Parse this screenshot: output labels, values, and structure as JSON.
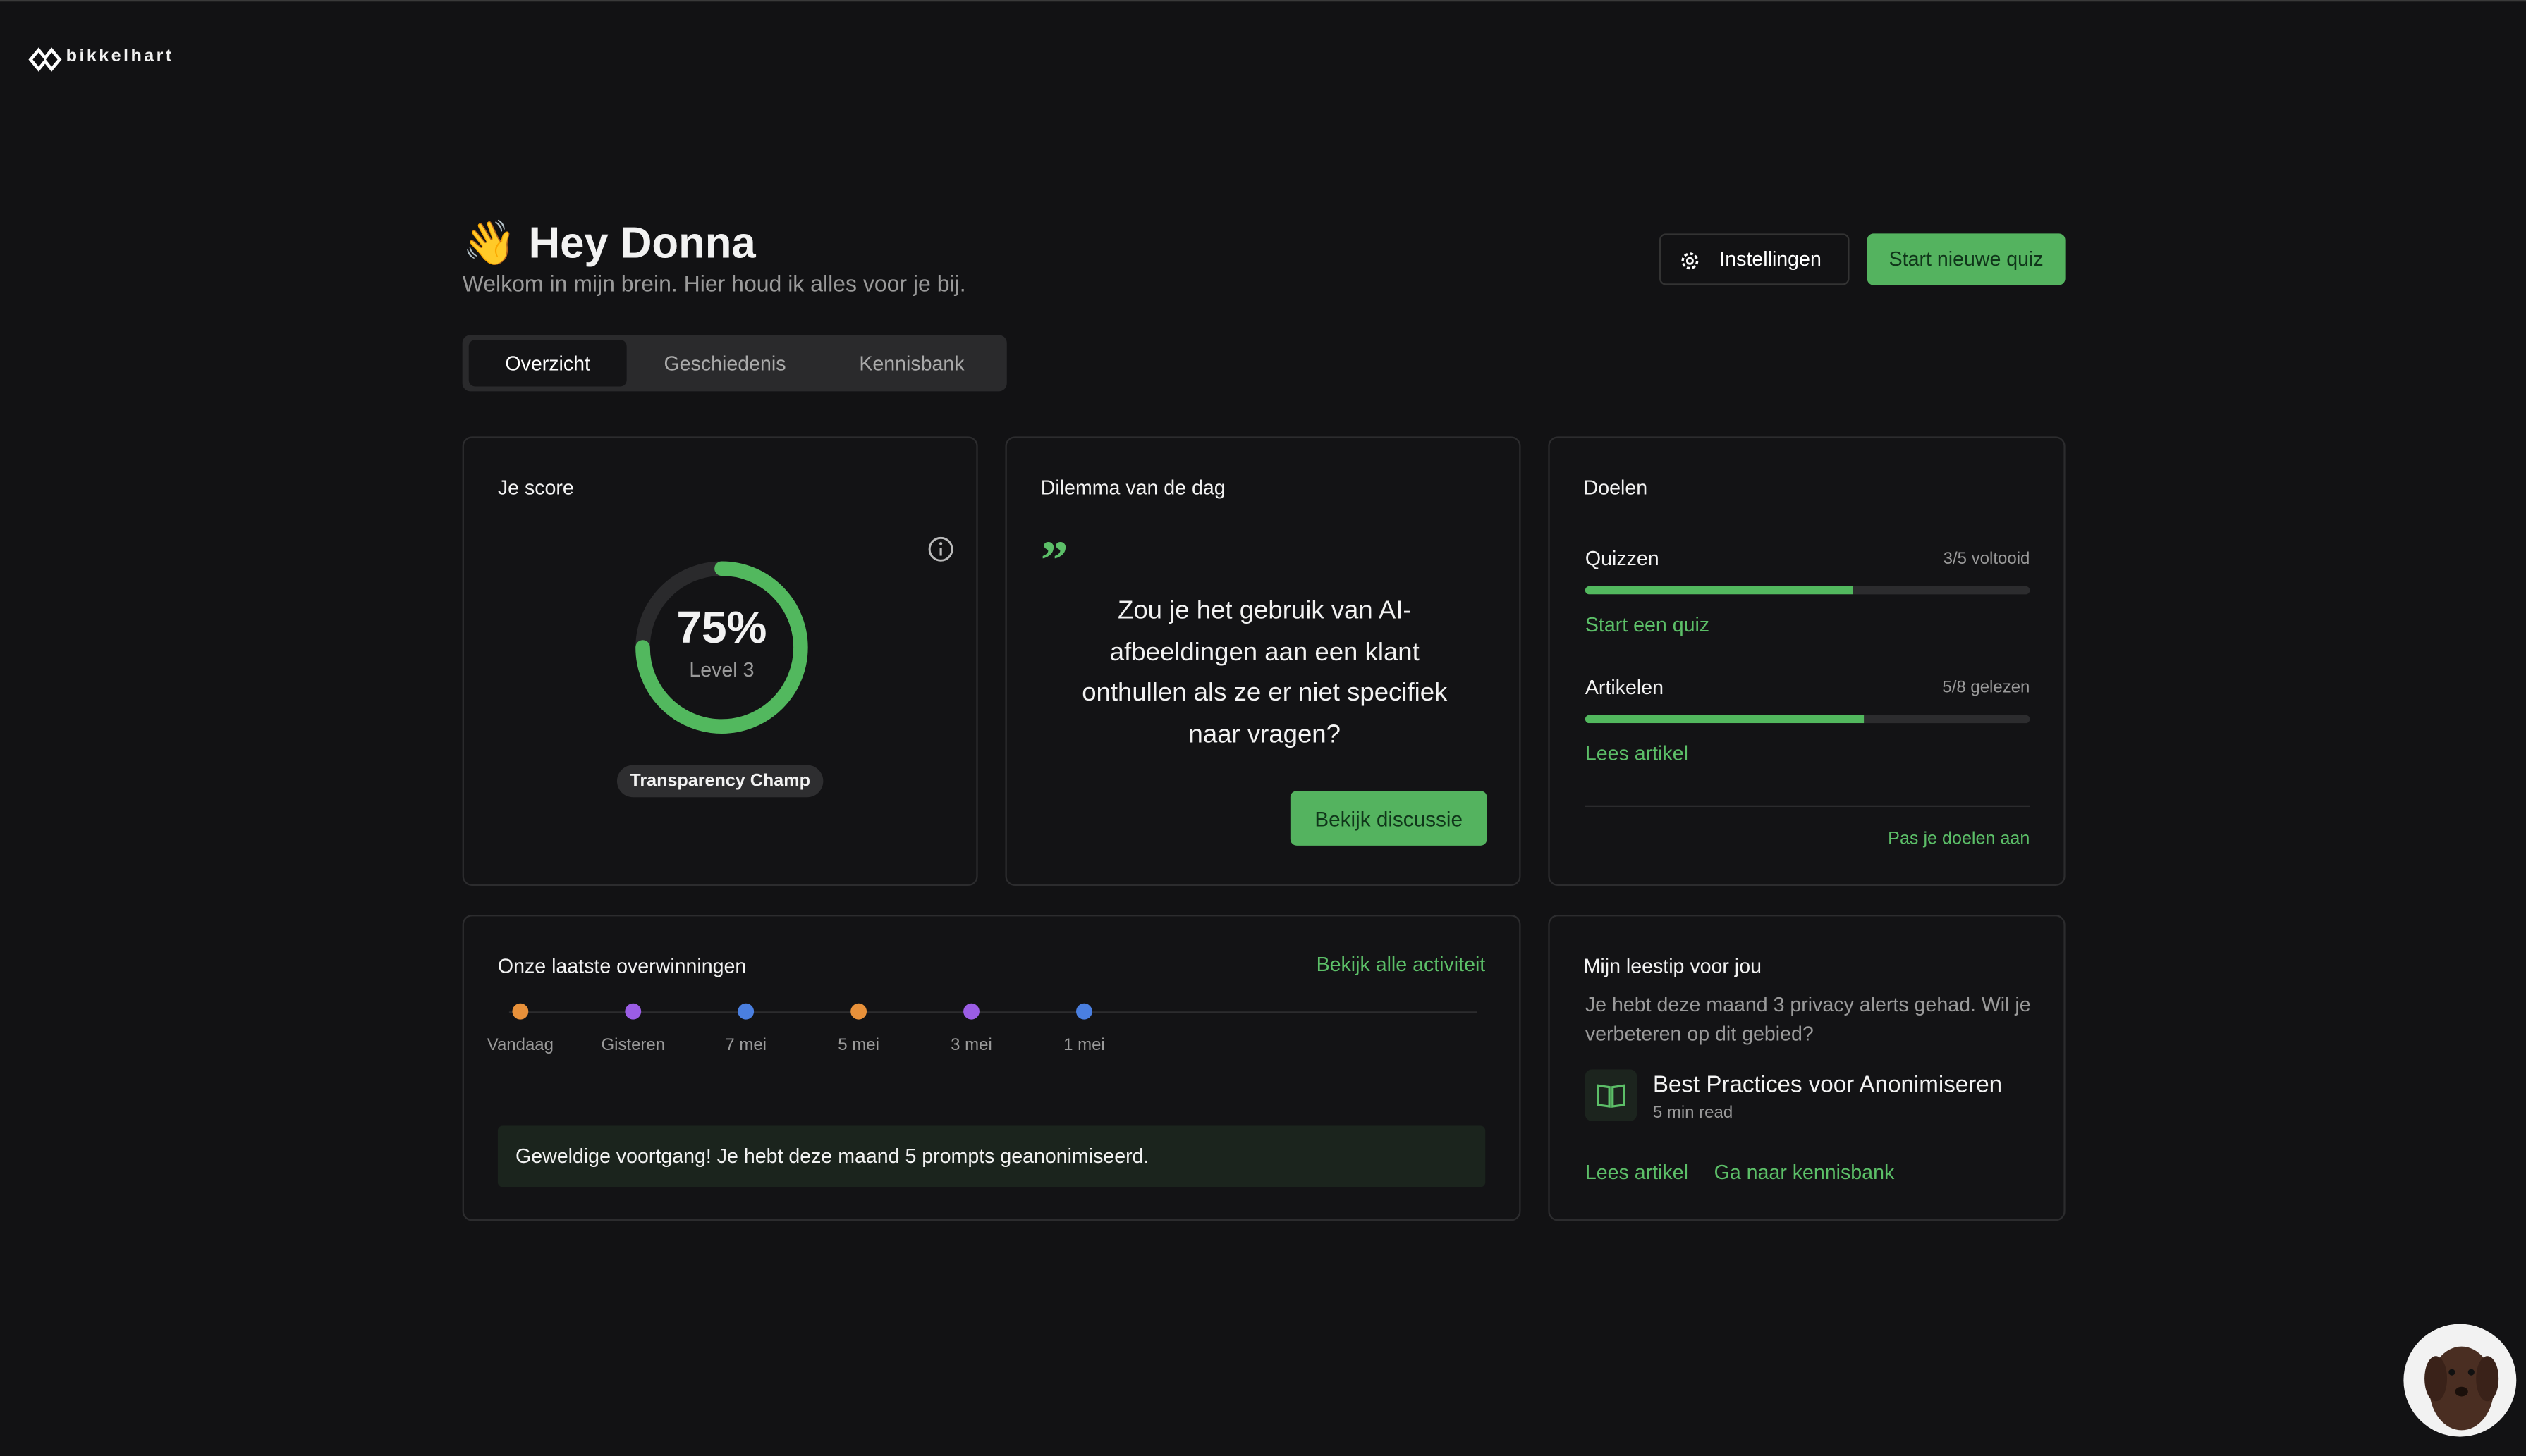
{
  "logo": {
    "name": "bikkelhart"
  },
  "header": {
    "title": "👋 Hey Donna",
    "subtitle": "Welkom in mijn brein. Hier houd ik alles voor je bij.",
    "buttons": [
      "Instellingen",
      "Start nieuwe quiz"
    ]
  },
  "tabs": [
    "Overzicht",
    "Geschiedenis",
    "Kennisbank"
  ],
  "score_card": {
    "title": "Je score",
    "score": {
      "value": 75,
      "label": "75%"
    },
    "level": "Level 3",
    "badge": "Transparency Champ"
  },
  "dilemma_card": {
    "title": "Dilemma van de dag",
    "question": "Zou je het gebruik van AI-afbeeldingen aan een klant onthullen als ze er niet specifiek naar vragen?",
    "button": "Bekijk discussie"
  },
  "goals_card": {
    "title": "Doelen",
    "goals": [
      {
        "name": "Quizzen",
        "done": 3,
        "total": 5,
        "label": "3/5 voltooid",
        "link": "Start een quiz"
      },
      {
        "name": "Artikelen",
        "done": 5,
        "total": 8,
        "label": "5/8 gelezen",
        "link": "Lees artikel"
      }
    ],
    "footer_link": "Pas je doelen aan"
  },
  "wins_card": {
    "title": "Onze laatste overwinningen",
    "link": "Bekijk alle activiteit",
    "timeline": [
      {
        "label": "Vandaag",
        "color": "#e8913a"
      },
      {
        "label": "Gisteren",
        "color": "#9b5de5"
      },
      {
        "label": "7 mei",
        "color": "#4a7fe0"
      },
      {
        "label": "5 mei",
        "color": "#e8913a"
      },
      {
        "label": "3 mei",
        "color": "#9b5de5"
      },
      {
        "label": "1 mei",
        "color": "#4a7fe0"
      }
    ],
    "message": "Geweldige voortgang! Je hebt deze maand 5 prompts geanonimiseerd."
  },
  "tip_card": {
    "title": "Mijn leestip voor jou",
    "text": "Je hebt deze maand 3 privacy alerts gehad. Wil je verbeteren op dit gebied?",
    "article": "Best Practices voor Anonimiseren",
    "read_time": "5 min read",
    "links": [
      "Lees artikel",
      "Ga naar kennisbank"
    ]
  }
}
